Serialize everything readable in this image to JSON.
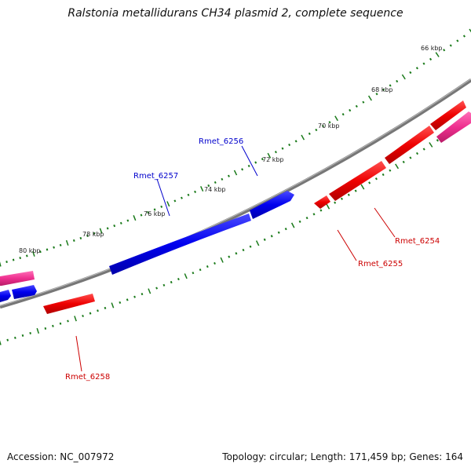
{
  "title": "Ralstonia metallidurans CH34 plasmid 2, complete sequence",
  "footer": {
    "accession": "Accession: NC_007972",
    "stats": "Topology: circular; Length: 171,459 bp; Genes: 164"
  },
  "map": {
    "backbone_color": "#888888",
    "tick_color": "#1a7a1a",
    "scale_labels": [
      "66 kbp",
      "68 kbp",
      "70 kbp",
      "72 kbp",
      "74 kbp",
      "76 kbp",
      "78 kbp",
      "80 kbp"
    ],
    "gene_labels": [
      {
        "name": "Rmet_6256",
        "color": "#0000cc"
      },
      {
        "name": "Rmet_6257",
        "color": "#0000cc"
      },
      {
        "name": "Rmet_6254",
        "color": "#cc0000"
      },
      {
        "name": "Rmet_6255",
        "color": "#cc0000"
      },
      {
        "name": "Rmet_6258",
        "color": "#cc0000"
      }
    ],
    "colors": {
      "forward_gene": "#1010ee",
      "reverse_gene": "#ee1010",
      "rna_gene": "#ee2f8f"
    }
  }
}
